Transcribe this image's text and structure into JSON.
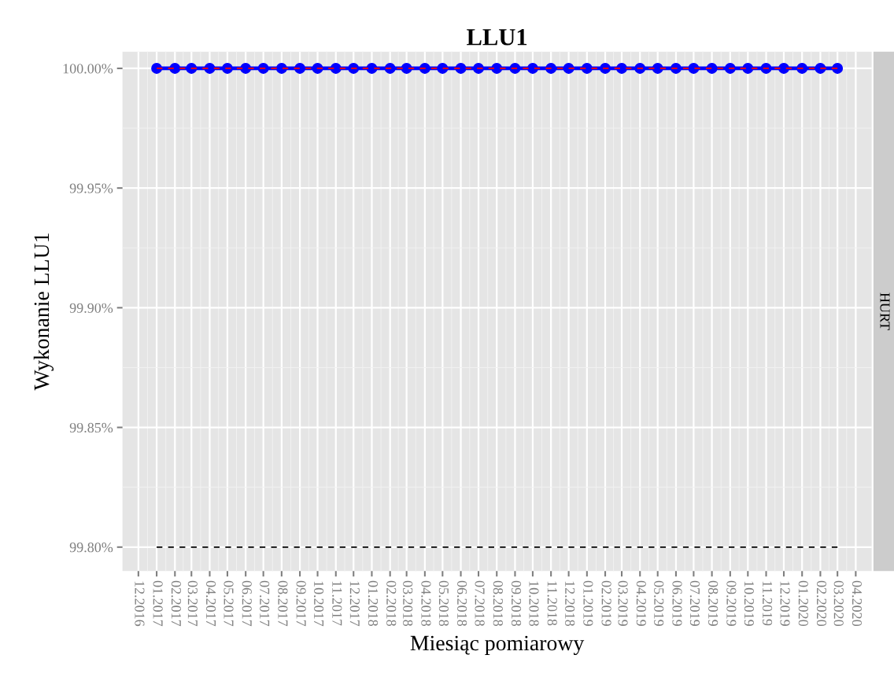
{
  "chart_data": {
    "type": "line",
    "title": "LLU1",
    "xlabel": "Miesiąc pomiarowy",
    "ylabel": "Wykonanie LLU1",
    "annotations": [
      "HURT"
    ],
    "x": [
      "2017-01",
      "2017-02",
      "2017-03",
      "2017-04",
      "2017-05",
      "2017-06",
      "2017-07",
      "2017-08",
      "2017-09",
      "2017-10",
      "2017-11",
      "2017-12",
      "2018-01",
      "2018-02",
      "2018-03",
      "2018-04",
      "2018-05",
      "2018-06",
      "2018-07",
      "2018-08",
      "2018-09",
      "2018-10",
      "2018-11",
      "2018-12",
      "2019-01",
      "2019-02",
      "2019-03",
      "2019-04",
      "2019-05",
      "2019-06",
      "2019-07",
      "2019-08",
      "2019-09",
      "2019-10",
      "2019-11",
      "2019-12",
      "2020-01",
      "2020-02",
      "2020-03"
    ],
    "series": [
      {
        "color": "#0000ff",
        "marker": "circle",
        "line_style": "solid",
        "values": [
          100,
          100,
          100,
          100,
          100,
          100,
          100,
          100,
          100,
          100,
          100,
          100,
          100,
          100,
          100,
          100,
          100,
          100,
          100,
          100,
          100,
          100,
          100,
          100,
          100,
          100,
          100,
          100,
          100,
          100,
          100,
          100,
          100,
          100,
          100,
          100,
          100,
          100,
          100
        ]
      },
      {
        "color": "#ff0000",
        "marker": "none",
        "line_style": "dashed",
        "values": [
          100,
          100,
          100,
          100,
          100,
          100,
          100,
          100,
          100,
          100,
          100,
          100,
          100,
          100,
          100,
          100,
          100,
          100,
          100,
          100,
          100,
          100,
          100,
          100,
          100,
          100,
          100,
          100,
          100,
          100,
          100,
          100,
          100,
          100,
          100,
          100,
          100,
          100,
          100
        ]
      },
      {
        "color": "#000000",
        "marker": "none",
        "line_style": "dashed",
        "values": [
          99.8,
          99.8,
          99.8,
          99.8,
          99.8,
          99.8,
          99.8,
          99.8,
          99.8,
          99.8,
          99.8,
          99.8,
          99.8,
          99.8,
          99.8,
          99.8,
          99.8,
          99.8,
          99.8,
          99.8,
          99.8,
          99.8,
          99.8,
          99.8,
          99.8,
          99.8,
          99.8,
          99.8,
          99.8,
          99.8,
          99.8,
          99.8,
          99.8,
          99.8,
          99.8,
          99.8,
          99.8,
          99.8,
          99.8
        ]
      }
    ],
    "xlim": [
      "2016-11-04",
      "2020-04-28"
    ],
    "xticks": [
      {
        "value": "2016-12",
        "label": "12.2016"
      },
      {
        "value": "2017-01",
        "label": "01.2017"
      },
      {
        "value": "2017-02",
        "label": "02.2017"
      },
      {
        "value": "2017-03",
        "label": "03.2017"
      },
      {
        "value": "2017-04",
        "label": "04.2017"
      },
      {
        "value": "2017-05",
        "label": "05.2017"
      },
      {
        "value": "2017-06",
        "label": "06.2017"
      },
      {
        "value": "2017-07",
        "label": "07.2017"
      },
      {
        "value": "2017-08",
        "label": "08.2017"
      },
      {
        "value": "2017-09",
        "label": "09.2017"
      },
      {
        "value": "2017-10",
        "label": "10.2017"
      },
      {
        "value": "2017-11",
        "label": "11.2017"
      },
      {
        "value": "2017-12",
        "label": "12.2017"
      },
      {
        "value": "2018-01",
        "label": "01.2018"
      },
      {
        "value": "2018-02",
        "label": "02.2018"
      },
      {
        "value": "2018-03",
        "label": "03.2018"
      },
      {
        "value": "2018-04",
        "label": "04.2018"
      },
      {
        "value": "2018-05",
        "label": "05.2018"
      },
      {
        "value": "2018-06",
        "label": "06.2018"
      },
      {
        "value": "2018-07",
        "label": "07.2018"
      },
      {
        "value": "2018-08",
        "label": "08.2018"
      },
      {
        "value": "2018-09",
        "label": "09.2018"
      },
      {
        "value": "2018-10",
        "label": "10.2018"
      },
      {
        "value": "2018-11",
        "label": "11.2018"
      },
      {
        "value": "2018-12",
        "label": "12.2018"
      },
      {
        "value": "2019-01",
        "label": "01.2019"
      },
      {
        "value": "2019-02",
        "label": "02.2019"
      },
      {
        "value": "2019-03",
        "label": "03.2019"
      },
      {
        "value": "2019-04",
        "label": "04.2019"
      },
      {
        "value": "2019-05",
        "label": "05.2019"
      },
      {
        "value": "2019-06",
        "label": "06.2019"
      },
      {
        "value": "2019-07",
        "label": "07.2019"
      },
      {
        "value": "2019-08",
        "label": "08.2019"
      },
      {
        "value": "2019-09",
        "label": "09.2019"
      },
      {
        "value": "2019-10",
        "label": "10.2019"
      },
      {
        "value": "2019-11",
        "label": "11.2019"
      },
      {
        "value": "2019-12",
        "label": "12.2019"
      },
      {
        "value": "2020-01",
        "label": "01.2020"
      },
      {
        "value": "2020-02",
        "label": "02.2020"
      },
      {
        "value": "2020-03",
        "label": "03.2020"
      },
      {
        "value": "2020-04",
        "label": "04.2020"
      }
    ],
    "ylim": [
      99.79,
      100.007
    ],
    "yticks": [
      {
        "value": 99.8,
        "label": "99.80%"
      },
      {
        "value": 99.85,
        "label": "99.85%"
      },
      {
        "value": 99.9,
        "label": "99.90%"
      },
      {
        "value": 99.95,
        "label": "99.95%"
      },
      {
        "value": 100,
        "label": "100.00%"
      }
    ],
    "grid": true
  }
}
